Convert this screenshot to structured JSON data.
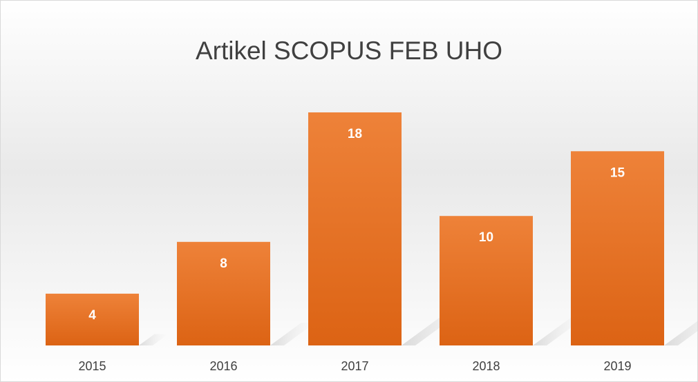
{
  "chart_data": {
    "type": "bar",
    "title": "Artikel SCOPUS FEB UHO",
    "categories": [
      "2015",
      "2016",
      "2017",
      "2018",
      "2019"
    ],
    "values": [
      4,
      8,
      18,
      10,
      15
    ],
    "color": "#ed7d31"
  }
}
